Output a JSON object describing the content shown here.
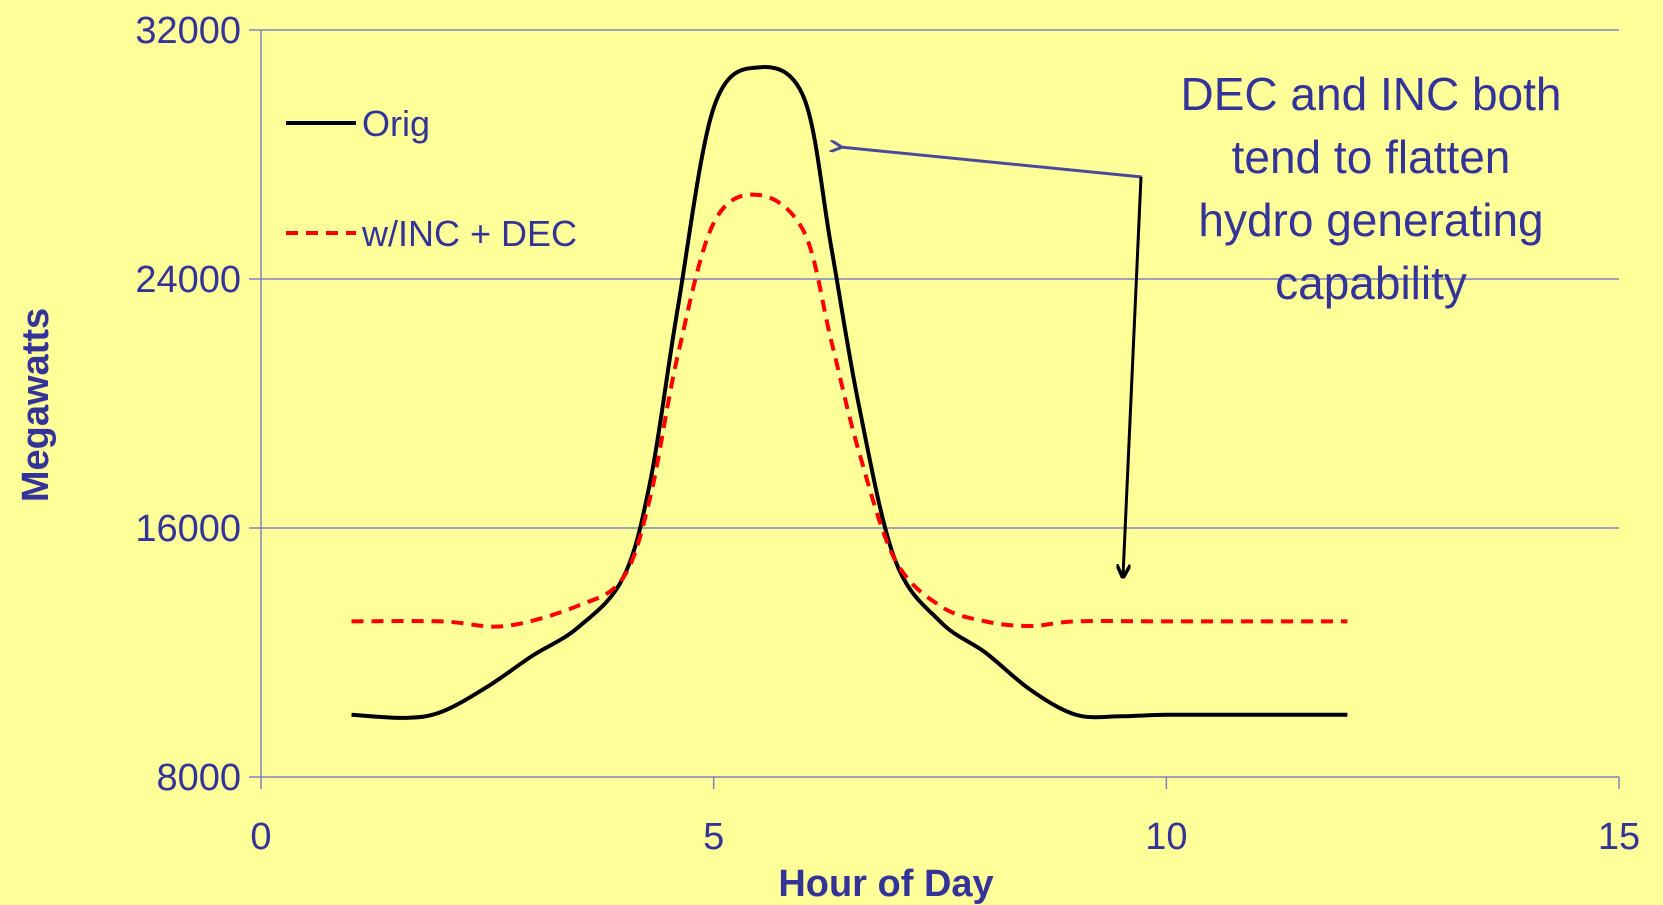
{
  "chart_data": {
    "type": "line",
    "xlabel": "Hour of Day",
    "ylabel": "Megawatts",
    "xlim": [
      0,
      15
    ],
    "ylim": [
      8000,
      32000
    ],
    "x_ticks": [
      0,
      5,
      10,
      15
    ],
    "y_ticks": [
      8000,
      16000,
      24000,
      32000
    ],
    "x_tick_labels": [
      "0",
      "5",
      "10",
      "15"
    ],
    "y_tick_labels": [
      "8000",
      "16000",
      "24000",
      "32000"
    ],
    "grid": "horizontal",
    "legend_position": "top-left",
    "series": [
      {
        "name": "Orig",
        "color": "#000000",
        "dash": "solid",
        "x": [
          1,
          1.6,
          2,
          2.5,
          3,
          3.5,
          4,
          4.3,
          4.6,
          5,
          5.5,
          6,
          6.3,
          6.6,
          7,
          7.5,
          8,
          8.5,
          9,
          9.5,
          10,
          11,
          12
        ],
        "y": [
          10000,
          9900,
          10100,
          10900,
          11900,
          12800,
          14400,
          17500,
          23000,
          29500,
          30800,
          29800,
          25000,
          20000,
          15000,
          13000,
          12000,
          10800,
          10000,
          9950,
          10000,
          10000,
          10000
        ]
      },
      {
        "name": "w/INC + DEC",
        "color": "#FF0000",
        "dash": "dashed",
        "x": [
          1,
          2,
          2.7,
          3.5,
          4,
          4.3,
          4.6,
          5,
          5.5,
          6,
          6.3,
          6.6,
          7,
          7.5,
          8,
          8.5,
          9,
          10,
          11,
          12
        ],
        "y": [
          13000,
          13000,
          12850,
          13500,
          14400,
          17000,
          21500,
          25800,
          26700,
          25500,
          22000,
          18500,
          15000,
          13500,
          13000,
          12850,
          13000,
          13000,
          13000,
          13000
        ]
      }
    ],
    "annotation": {
      "lines": [
        "DEC and INC both",
        "tend to flatten",
        "hydro generating",
        "capability"
      ]
    }
  },
  "colors": {
    "background": "#FFFF99",
    "text": "#333399",
    "axis": "#8080C0",
    "arrow_blue": "#4A4A9A",
    "arrow_black": "#000000"
  }
}
